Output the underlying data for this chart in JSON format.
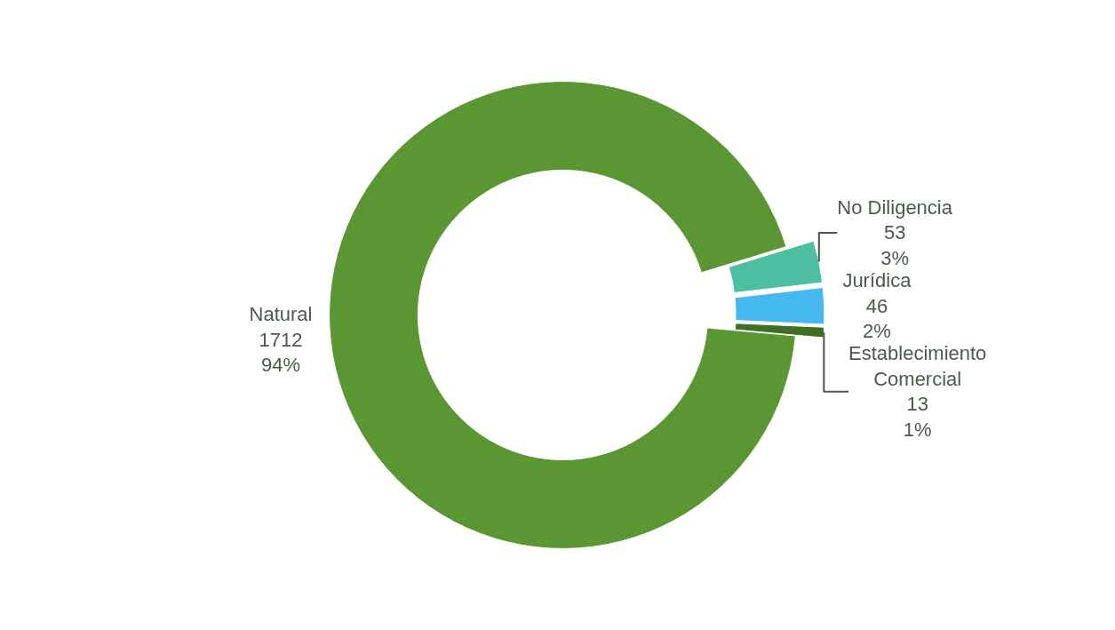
{
  "chart_data": {
    "type": "donut",
    "categories": [
      "No Diligencia",
      "Jurídica",
      "Establecimiento Comercial",
      "Natural"
    ],
    "values": [
      53,
      46,
      13,
      1712
    ],
    "value_labels": [
      "53\n3%",
      "46\n2%",
      "13\n1%",
      "1712\n94%"
    ],
    "colors": [
      "#4dbfa0",
      "#45b8f0",
      "#3f6e25",
      "#5a9632"
    ],
    "legend": false
  }
}
